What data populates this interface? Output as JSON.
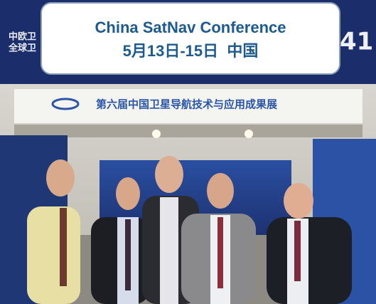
{
  "caption": {
    "title": "China SatNav Conference",
    "subtitle": "5月13日-15日  中国"
  },
  "photo": {
    "sign_left": [
      "中欧卫",
      "全球卫"
    ],
    "sign_number": "41",
    "banner": "第六届中国卫星导航技术与应用成果展"
  }
}
